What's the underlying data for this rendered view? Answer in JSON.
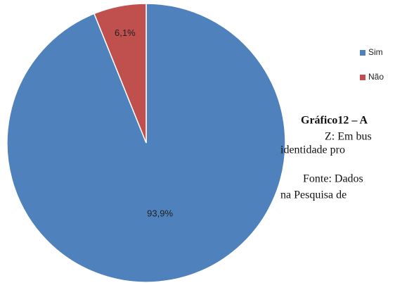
{
  "chart_data": {
    "type": "pie",
    "categories": [
      "Sim",
      "Não"
    ],
    "values": [
      93.9,
      6.1
    ],
    "value_labels": [
      "93,9%",
      "6,1%"
    ],
    "colors": [
      "#4f81bd",
      "#c0504d"
    ],
    "legend": "right",
    "annotations": [
      "Gráfico12 – A",
      "Z: Em bus",
      "identidade pro",
      "Fonte: Dados",
      "na Pesquisa de"
    ]
  }
}
